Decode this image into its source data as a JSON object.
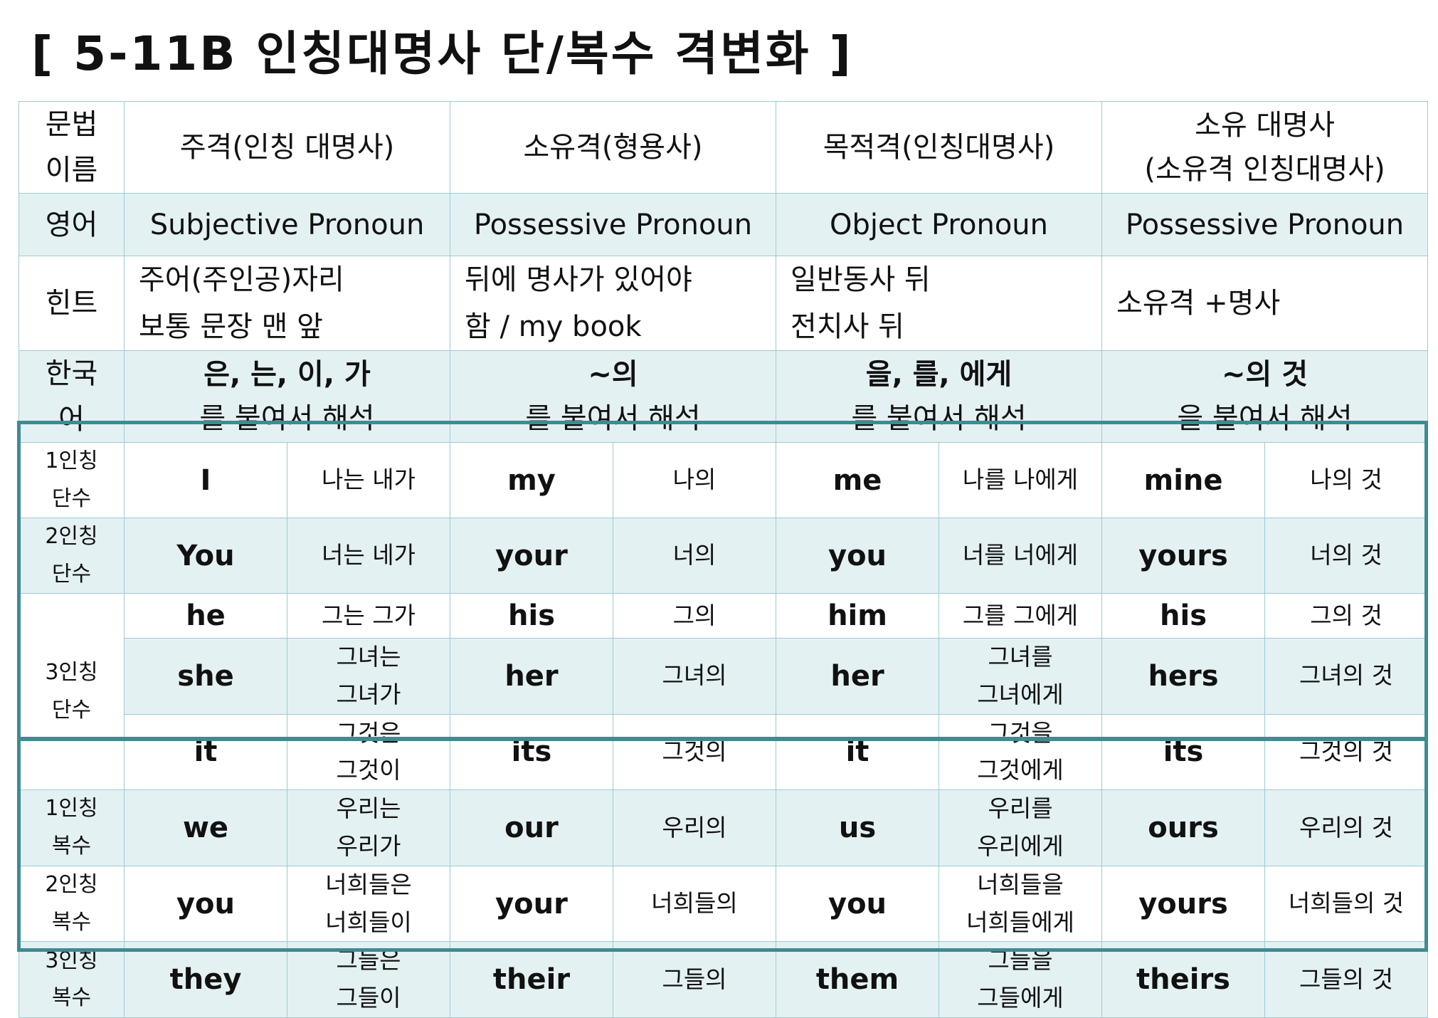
{
  "title": "[ 5-11B 인칭대명사 단/복수 격변화 ]",
  "header": {
    "label": "문법\n이름",
    "cols": [
      "주격(인칭 대명사)",
      "소유격(형용사)",
      "목적격(인칭대명사)",
      "소유 대명사\n(소유격 인칭대명사)"
    ]
  },
  "english": {
    "label": "영어",
    "cols": [
      "Subjective Pronoun",
      "Possessive Pronoun",
      "Object Pronoun",
      "Possessive Pronoun"
    ]
  },
  "hint": {
    "label": "힌트",
    "cols": [
      "주어(주인공)자리\n보통 문장 맨 앞",
      "뒤에 명사가 있어야\n함 / my book",
      "일반동사 뒤\n전치사 뒤",
      "소유격 +명사"
    ]
  },
  "korean": {
    "label": "한국\n어",
    "cols": [
      {
        "bold": "은, 는, 이, 가",
        "rest": "를 붙여서 해석"
      },
      {
        "bold": "~의",
        "rest": "를 붙여서 해석"
      },
      {
        "bold": "을, 를, 에게",
        "rest": "를 붙여서 해석"
      },
      {
        "bold": "~의 것",
        "rest": "을 붙여서 해석"
      }
    ]
  },
  "rows": [
    {
      "person": "1인칭\n단수",
      "cells": [
        "I",
        "나는 내가",
        "my",
        "나의",
        "me",
        "나를 나에게",
        "mine",
        "나의 것"
      ]
    },
    {
      "person": "2인칭\n단수",
      "cells": [
        "You",
        "너는 네가",
        "your",
        "너의",
        "you",
        "너를 너에게",
        "yours",
        "너의 것"
      ]
    },
    {
      "person": "3인칭\n단수",
      "cells": [
        "he",
        "그는 그가",
        "his",
        "그의",
        "him",
        "그를 그에게",
        "his",
        "그의 것"
      ]
    },
    {
      "person": "",
      "cells": [
        "she",
        "그녀는\n그녀가",
        "her",
        "그녀의",
        "her",
        "그녀를\n그녀에게",
        "hers",
        "그녀의 것"
      ]
    },
    {
      "person": "",
      "cells": [
        "it",
        "그것은\n그것이",
        "its",
        "그것의",
        "it",
        "그것을\n그것에게",
        "its",
        "그것의 것"
      ]
    },
    {
      "person": "1인칭\n복수",
      "cells": [
        "we",
        "우리는\n우리가",
        "our",
        "우리의",
        "us",
        "우리를\n우리에게",
        "ours",
        "우리의 것"
      ]
    },
    {
      "person": "2인칭\n복수",
      "cells": [
        "you",
        "너희들은\n너희들이",
        "your",
        "너희들의",
        "you",
        "너희들을\n너희들에게",
        "yours",
        "너희들의 것"
      ]
    },
    {
      "person": "3인칭\n복수",
      "cells": [
        "they",
        "그들은\n그들이",
        "their",
        "그들의",
        "them",
        "그들을\n그들에게",
        "theirs",
        "그들의 것"
      ]
    }
  ]
}
